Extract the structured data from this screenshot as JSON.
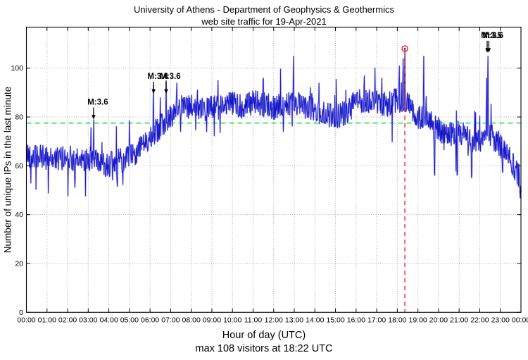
{
  "title": {
    "line1": "University of Athens - Department of Geophysics & Geothermics",
    "line2": "web site traffic for 19-Apr-2021"
  },
  "ylabel": "Number of unique IPs in the last minute",
  "xlabel": "Hour of day (UTC)",
  "caption": "max 108 visitors at 18:22 UTC",
  "chart_data": {
    "type": "line",
    "title": "University of Athens - Department of Geophysics & Geothermics — web site traffic for 19-Apr-2021",
    "xlabel": "Hour of day (UTC)",
    "ylabel": "Number of unique IPs in the last minute",
    "x_ticks": [
      "00:00",
      "01:00",
      "02:00",
      "03:00",
      "04:00",
      "05:00",
      "06:00",
      "07:00",
      "08:00",
      "09:00",
      "10:00",
      "11:00",
      "12:00",
      "13:00",
      "14:00",
      "15:00",
      "16:00",
      "17:00",
      "18:00",
      "19:00",
      "20:00",
      "21:00",
      "22:00",
      "23:00",
      "00:00"
    ],
    "y_ticks": [
      0,
      20,
      40,
      60,
      80,
      100
    ],
    "xlim_hours": [
      0,
      24
    ],
    "ylim": [
      0,
      116.8
    ],
    "grid": true,
    "legend": "none",
    "series": [
      {
        "name": "unique IPs per minute",
        "color": "#1414cc",
        "halo_color": "#9a9ae2",
        "sampling_minutes": 1,
        "profile_hours": [
          0,
          0.5,
          1,
          1.5,
          2,
          2.5,
          3,
          3.5,
          4,
          4.5,
          5,
          5.5,
          6,
          6.5,
          7,
          7.5,
          8,
          8.5,
          9,
          9.5,
          10,
          10.5,
          11,
          11.5,
          12,
          12.5,
          13,
          13.5,
          14,
          14.5,
          15,
          15.5,
          16,
          16.5,
          17,
          17.5,
          18,
          18.5,
          19,
          19.5,
          20,
          20.5,
          21,
          21.5,
          22,
          22.5,
          23,
          23.5,
          24
        ],
        "profile_values": [
          65,
          63.5,
          63.5,
          62.5,
          64,
          62,
          63,
          61.5,
          60.5,
          62,
          63.5,
          67,
          72,
          76,
          80,
          84,
          84,
          82.5,
          84,
          85,
          86,
          84,
          86,
          85,
          84,
          85,
          86,
          84,
          83,
          81,
          80,
          82,
          86,
          87,
          86,
          85,
          87,
          86,
          80,
          78,
          75,
          72.5,
          74,
          71,
          70,
          73,
          68,
          62,
          54
        ],
        "noise_amplitude": 5.2,
        "spikes": [
          {
            "hour": 2.35,
            "value": 51
          },
          {
            "hour": 3.26,
            "value": 79
          },
          {
            "hour": 4.4,
            "value": 53
          },
          {
            "hour": 6.17,
            "value": 93
          },
          {
            "hour": 6.5,
            "value": 88
          },
          {
            "hour": 6.78,
            "value": 95
          },
          {
            "hour": 7.3,
            "value": 94
          },
          {
            "hour": 9.3,
            "value": 95
          },
          {
            "hour": 11.5,
            "value": 96
          },
          {
            "hour": 12.97,
            "value": 105
          },
          {
            "hour": 14.2,
            "value": 94
          },
          {
            "hour": 16.4,
            "value": 97
          },
          {
            "hour": 17.25,
            "value": 96
          },
          {
            "hour": 18.1,
            "value": 101
          },
          {
            "hour": 18.28,
            "value": 104
          },
          {
            "hour": 19.29,
            "value": 105
          },
          {
            "hour": 19.8,
            "value": 57
          },
          {
            "hour": 20.9,
            "value": 56
          },
          {
            "hour": 21.6,
            "value": 55
          },
          {
            "hour": 22.33,
            "value": 96
          },
          {
            "hour": 22.4,
            "value": 105
          },
          {
            "hour": 23.1,
            "value": 58
          },
          {
            "hour": 23.95,
            "value": 49
          }
        ]
      }
    ],
    "average_line": {
      "value": 77.5,
      "color": "#2de24f",
      "style": "dashed"
    },
    "max_marker": {
      "hour": 18.3667,
      "value": 108,
      "time_label": "18:22",
      "color": "#f03131",
      "vline_style": "dashed"
    },
    "annotations": [
      {
        "label": "M:3.6",
        "hour": 3.26,
        "tip_value": 79
      },
      {
        "label": "M:3.4",
        "hour": 6.17,
        "tip_value": 89.5
      },
      {
        "label": "M:3.6",
        "hour": 6.78,
        "tip_value": 89.5
      },
      {
        "label": "M:3.5",
        "hour": 22.36,
        "tip_value": 106.3
      },
      {
        "label": "M:3.6",
        "hour": 22.44,
        "tip_value": 106.3
      }
    ]
  }
}
